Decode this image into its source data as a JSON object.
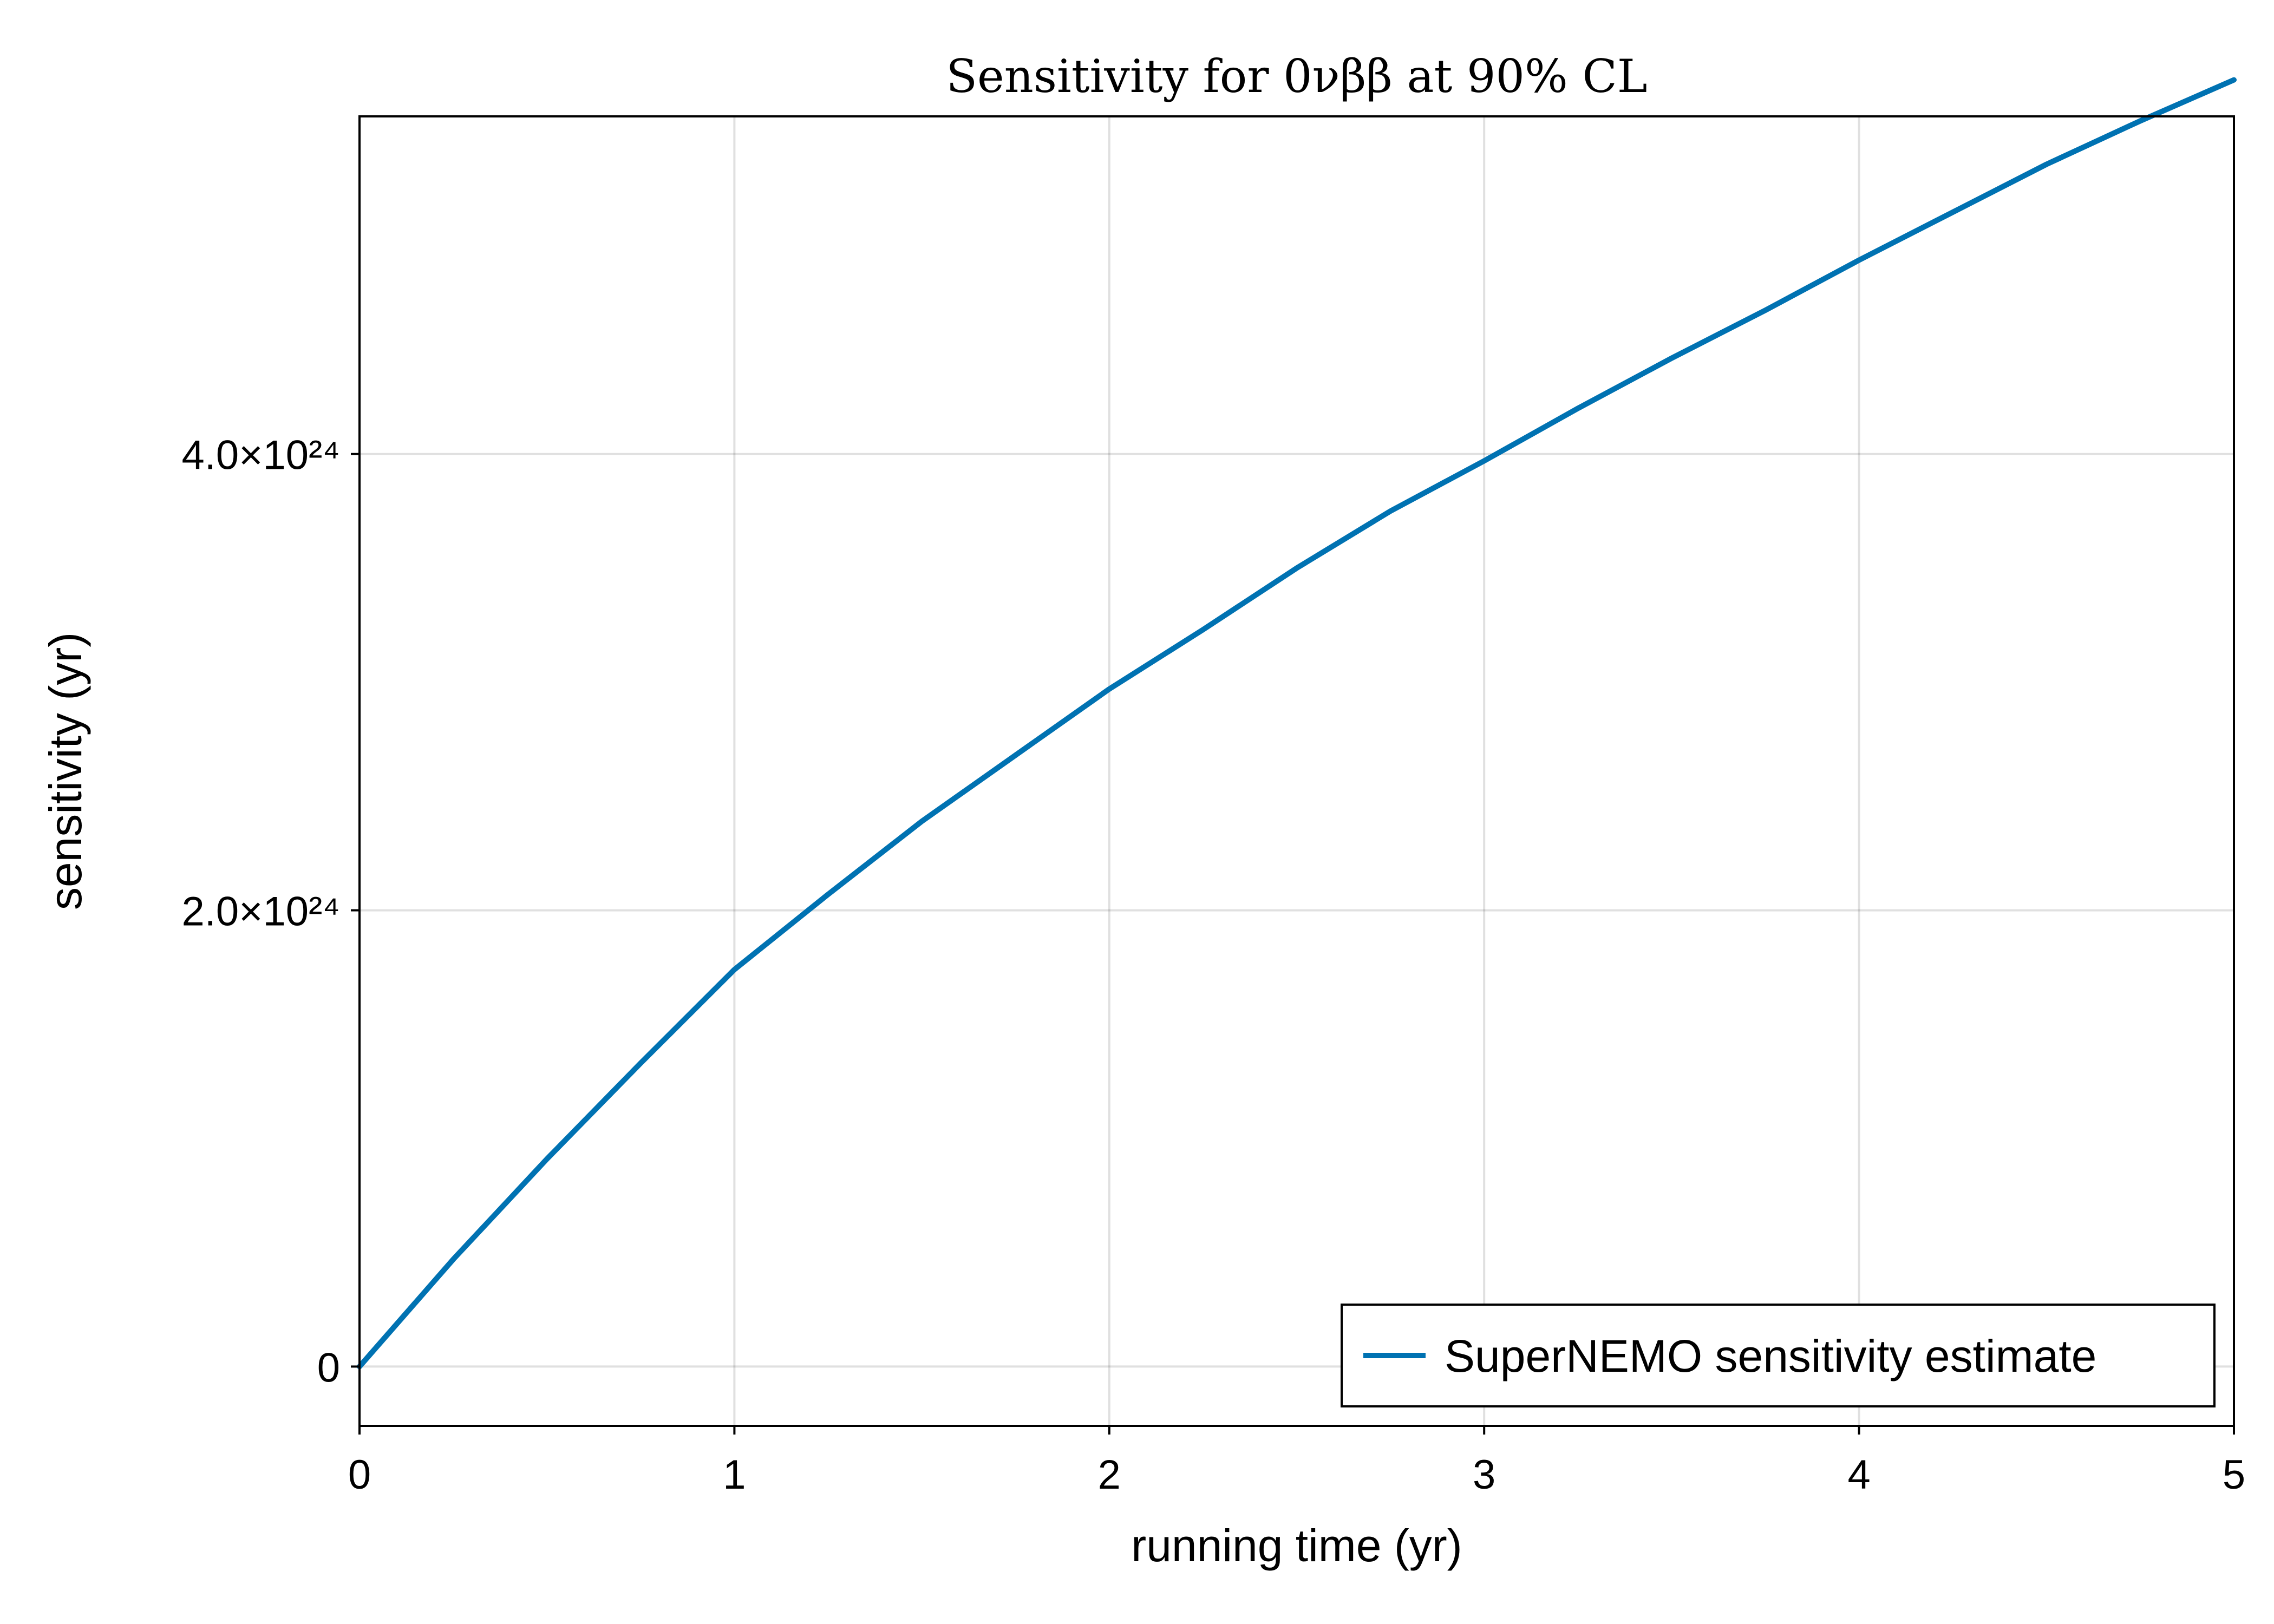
{
  "chart_data": {
    "type": "line",
    "title": "Sensitivity for 0νββ at 90% CL",
    "xlabel": "running time (yr)",
    "ylabel": "sensitivity (yr)",
    "xlim": [
      0,
      5
    ],
    "ylim": [
      -2.6e+23,
      5.48e+24
    ],
    "grid": true,
    "legend_position": "bottom-right",
    "x_ticks": [
      {
        "value": 0,
        "label": "0"
      },
      {
        "value": 1,
        "label": "1"
      },
      {
        "value": 2,
        "label": "2"
      },
      {
        "value": 3,
        "label": "3"
      },
      {
        "value": 4,
        "label": "4"
      },
      {
        "value": 5,
        "label": "5"
      }
    ],
    "y_ticks": [
      {
        "value": 0,
        "label": "0"
      },
      {
        "value": 2e+24,
        "label": "2.0×10²⁴"
      },
      {
        "value": 4e+24,
        "label": "4.0×10²⁴"
      }
    ],
    "series": [
      {
        "name": "SuperNEMO sensitivity estimate",
        "color": "#0072b2",
        "x": [
          0,
          0.25,
          0.5,
          0.75,
          1.0,
          1.25,
          1.5,
          1.75,
          2.0,
          2.25,
          2.5,
          2.75,
          3.0,
          3.25,
          3.5,
          3.75,
          4.0,
          4.25,
          4.5,
          4.75,
          5.0
        ],
        "y": [
          0,
          4.7e+23,
          9.1e+23,
          1.33e+24,
          1.74e+24,
          2.07e+24,
          2.39e+24,
          2.68e+24,
          2.97e+24,
          3.23e+24,
          3.5e+24,
          3.75e+24,
          3.97e+24,
          4.2e+24,
          4.42e+24,
          4.63e+24,
          4.85e+24,
          5.06e+24,
          5.27e+24,
          5.46e+24,
          5.64e+24
        ]
      }
    ]
  }
}
